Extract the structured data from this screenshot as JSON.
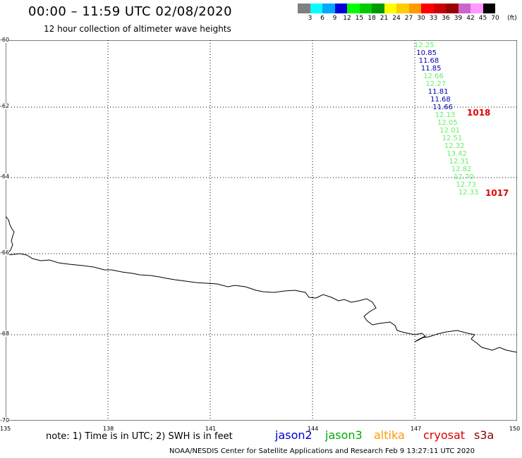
{
  "header": {
    "title": "00:00 – 11:59 UTC 02/08/2020",
    "subtitle": "12 hour collection of altimeter wave heights"
  },
  "scale": {
    "colors": [
      "#808080",
      "#00ffff",
      "#00a8ff",
      "#0000dd",
      "#00ff00",
      "#00cc00",
      "#009900",
      "#ffff00",
      "#ffcc00",
      "#ff9900",
      "#ff0000",
      "#cc0000",
      "#990000",
      "#cc66cc",
      "#ff99ff",
      "#000000"
    ],
    "labels": [
      "3",
      "6",
      "9",
      "12",
      "15",
      "18",
      "21",
      "24",
      "27",
      "30",
      "33",
      "36",
      "39",
      "42",
      "45",
      "70",
      "(ft)"
    ]
  },
  "map": {
    "lat_labels": [
      "-60",
      "-62",
      "-64",
      "-66",
      "-68",
      "-70"
    ],
    "lon_labels": [
      "135",
      "138",
      "141",
      "144",
      "147",
      "150"
    ]
  },
  "observations": [
    {
      "value": "12.25",
      "color": "#66ee66"
    },
    {
      "value": "10.85",
      "color": "#0000aa"
    },
    {
      "value": "11.68",
      "color": "#0000aa"
    },
    {
      "value": "11.85",
      "color": "#0000aa"
    },
    {
      "value": "12.66",
      "color": "#66ee66"
    },
    {
      "value": "12.27",
      "color": "#66ee66"
    },
    {
      "value": "11.81",
      "color": "#0000aa"
    },
    {
      "value": "11.68",
      "color": "#0000aa"
    },
    {
      "value": "11.66",
      "color": "#0000aa"
    },
    {
      "value": "12.13",
      "color": "#66ee66"
    },
    {
      "value": "12.05",
      "color": "#66ee66"
    },
    {
      "value": "12.01",
      "color": "#66ee66"
    },
    {
      "value": "12.51",
      "color": "#66ee66"
    },
    {
      "value": "12.32",
      "color": "#66ee66"
    },
    {
      "value": "13.42",
      "color": "#66ee66"
    },
    {
      "value": "12.31",
      "color": "#66ee66"
    },
    {
      "value": "12.82",
      "color": "#66ee66"
    },
    {
      "value": "12.70",
      "color": "#66ee66"
    },
    {
      "value": "12.73",
      "color": "#66ee66"
    },
    {
      "value": "12.33",
      "color": "#66ee66"
    }
  ],
  "pressure_labels": [
    "1018",
    "1017"
  ],
  "footer": {
    "note": "note: 1) Time is in UTC; 2) SWH is in feet",
    "satellites": [
      {
        "name": "jason2",
        "color": "#0000cc"
      },
      {
        "name": "jason3",
        "color": "#00aa00"
      },
      {
        "name": "altika",
        "color": "#ff9900"
      },
      {
        "name": "cryosat",
        "color": "#dd0000"
      },
      {
        "name": "s3a",
        "color": "#880000"
      }
    ],
    "credit": "NOAA/NESDIS Center for Satellite Applications and Research    Feb  9 13:27:11 UTC 2020"
  }
}
